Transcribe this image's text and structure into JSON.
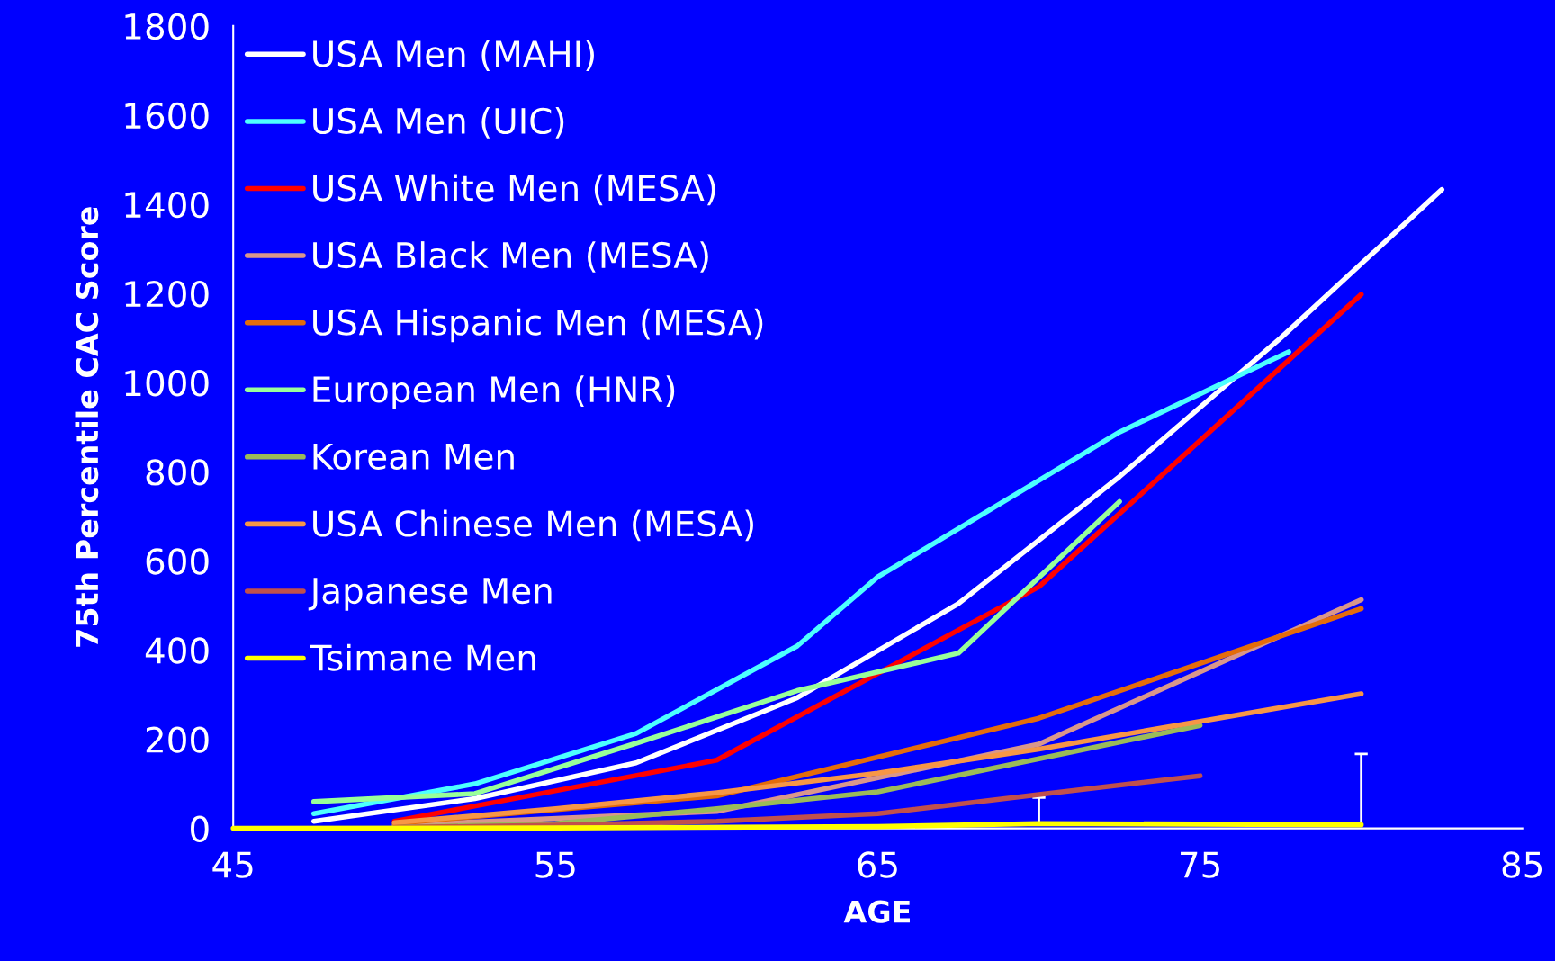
{
  "chart_data": {
    "type": "line",
    "xlabel": "AGE",
    "ylabel": "75th Percentile CAC Score",
    "xlim": [
      45,
      85
    ],
    "xticks": [
      45,
      55,
      65,
      75,
      85
    ],
    "ylim": [
      0,
      1800
    ],
    "yticks": [
      0,
      200,
      400,
      600,
      800,
      1000,
      1200,
      1400,
      1600,
      1800
    ],
    "grid": false,
    "legend": "top left",
    "marker": "none",
    "line_style": "solid",
    "series": [
      {
        "name": "USA Men (MAHI)",
        "color": "#ffffff",
        "x": [
          47.5,
          52.5,
          57.5,
          62.5,
          67.5,
          72.5,
          77.5,
          82.5
        ],
        "values": [
          16,
          67,
          147,
          293,
          504,
          789,
          1100,
          1433
        ]
      },
      {
        "name": "USA Men (UIC)",
        "color": "#4dffff",
        "x": [
          47.5,
          52.5,
          57.5,
          62.5,
          65,
          72.5,
          77.75
        ],
        "values": [
          33,
          100,
          213,
          409,
          564,
          889,
          1069
        ]
      },
      {
        "name": "USA White Men (MESA)",
        "color": "#ff0000",
        "x": [
          50,
          60,
          70,
          80
        ],
        "values": [
          16,
          153,
          542,
          1198
        ]
      },
      {
        "name": "USA Black Men (MESA)",
        "color": "#d9968c",
        "x": [
          50,
          60,
          70,
          80
        ],
        "values": [
          7,
          38,
          189,
          513
        ]
      },
      {
        "name": "USA Hispanic Men (MESA)",
        "color": "#e46c0a",
        "x": [
          50,
          60,
          70,
          80
        ],
        "values": [
          11,
          73,
          247,
          493
        ]
      },
      {
        "name": "European Men (HNR)",
        "color": "#99ff99",
        "x": [
          47.5,
          52.5,
          57.5,
          62.5,
          67.5,
          72.5
        ],
        "values": [
          60,
          78,
          191,
          309,
          393,
          733
        ]
      },
      {
        "name": "Korean Men",
        "color": "#9bbb59",
        "x": [
          50,
          55,
          60,
          65,
          70,
          75
        ],
        "values": [
          2,
          11,
          44,
          82,
          156,
          231
        ]
      },
      {
        "name": "USA Chinese Men (MESA)",
        "color": "#f79646",
        "x": [
          50,
          55,
          60,
          65,
          70,
          75,
          80
        ],
        "values": [
          13,
          44,
          80,
          124,
          178,
          240,
          302
        ]
      },
      {
        "name": "Japanese Men",
        "color": "#c0504d",
        "x": [
          50,
          55,
          60,
          65,
          70,
          75
        ],
        "values": [
          2,
          7,
          16,
          33,
          76,
          118
        ]
      },
      {
        "name": "Tsimane Men",
        "color": "#ffff00",
        "x": [
          45,
          55,
          65,
          70,
          80
        ],
        "values": [
          0,
          1,
          4,
          11,
          8
        ],
        "errors": [
          null,
          null,
          null,
          [
            11,
            69
          ],
          [
            8,
            167
          ]
        ]
      }
    ]
  }
}
